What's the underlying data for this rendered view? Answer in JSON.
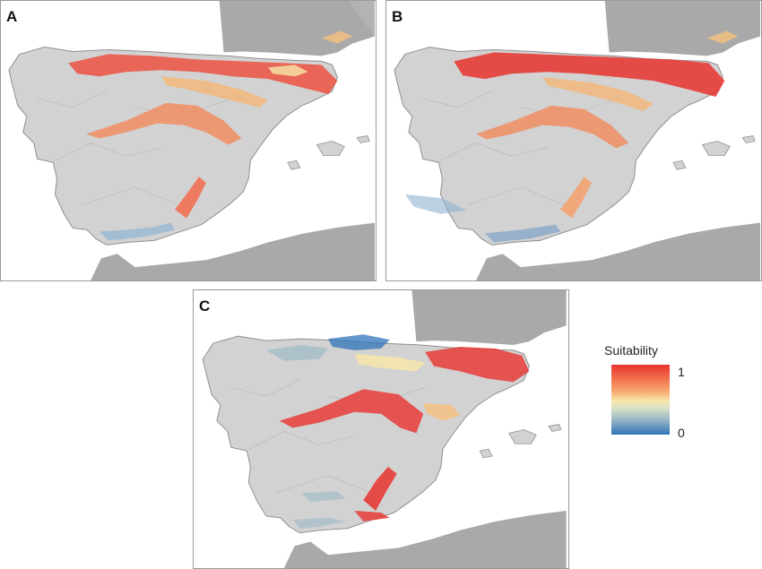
{
  "panels": [
    {
      "label": "A"
    },
    {
      "label": "B"
    },
    {
      "label": "C"
    }
  ],
  "legend": {
    "title": "Suitability",
    "max_label": "1",
    "min_label": "0",
    "colors": {
      "high": "#e8332e",
      "mid": "#f7e7aa",
      "low": "#2f73b8"
    }
  },
  "colors": {
    "land": "#d2d2d2",
    "land_outline": "#8f8f8f",
    "foreign_land": "#a9a9a9",
    "sea": "#ffffff",
    "border_lines": "#7a7a7a"
  }
}
